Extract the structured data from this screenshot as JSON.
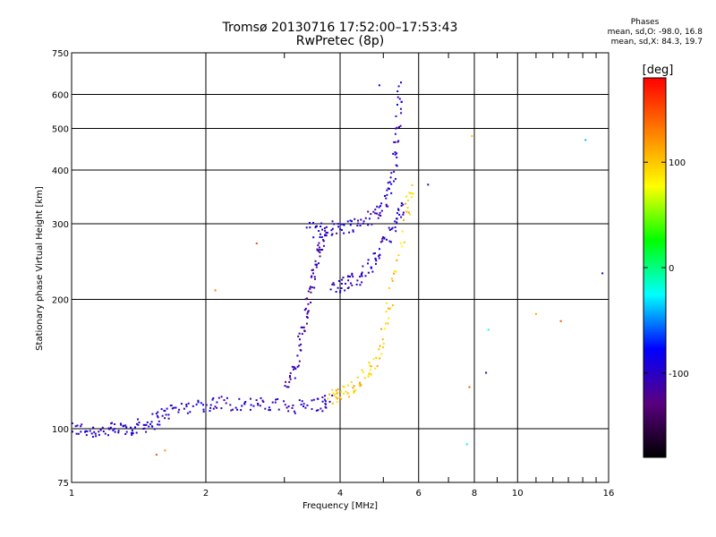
{
  "title": {
    "line1": "Tromsø 20130716 17:52:00–17:53:43",
    "line2": "RwPretec (8p)"
  },
  "phases": {
    "heading": "Phases",
    "line1": "mean, sd,O: -98.0, 16.8",
    "line2": "mean, sd,X:  84.3, 19.7"
  },
  "colorbar": {
    "label": "[deg]",
    "ticks": [
      "100",
      "0",
      "-100"
    ],
    "tick_values": [
      100,
      0,
      -100
    ],
    "range": [
      -180,
      180
    ],
    "stops": [
      "#000000",
      "#5a0080",
      "#0000ff",
      "#00ffff",
      "#00ff00",
      "#ffff00",
      "#ff8000",
      "#ff0000"
    ]
  },
  "chart_data": {
    "type": "scatter",
    "title": "Tromsø 20130716 17:52:00–17:53:43",
    "subtitle": "RwPretec (8p)",
    "xlabel": "Frequency [MHz]",
    "ylabel": "Stationary phase Virtual Height [km]",
    "xscale": "log",
    "yscale": "log",
    "xlim": [
      1,
      16
    ],
    "ylim": [
      75,
      750
    ],
    "grid": true,
    "xticks": [
      1,
      2,
      4,
      6,
      8,
      10,
      16
    ],
    "xtick_labels": [
      "1",
      "2",
      "4",
      "6",
      "8",
      "10",
      "16"
    ],
    "yticks": [
      75,
      100,
      200,
      300,
      400,
      500,
      600,
      750
    ],
    "ytick_labels": [
      "75",
      "100",
      "200",
      "300",
      "400",
      "500",
      "600",
      "750"
    ],
    "color_scale": "phase [deg]",
    "traces": [
      {
        "x": [
          1.0,
          1.1,
          1.2,
          1.3,
          1.4,
          1.5,
          1.6,
          1.75,
          2.0,
          2.2,
          2.5,
          2.8,
          3.2,
          3.6,
          3.8
        ],
        "y": [
          100,
          99,
          99,
          100,
          101,
          103,
          108,
          112,
          114,
          115,
          114,
          113,
          113,
          114,
          116
        ],
        "phase": -100
      },
      {
        "x": [
          3.4,
          3.7,
          4.0,
          4.4,
          4.8,
          5.1,
          5.3,
          5.4,
          5.45
        ],
        "y": [
          290,
          292,
          295,
          300,
          315,
          340,
          400,
          500,
          640
        ],
        "phase": -100
      },
      {
        "x": [
          3.0,
          3.2,
          3.3,
          3.4,
          3.5,
          3.6,
          3.7
        ],
        "y": [
          125,
          140,
          170,
          200,
          230,
          260,
          290
        ],
        "phase": -110
      },
      {
        "x": [
          3.85,
          4.1,
          4.4,
          4.7,
          5.0,
          5.3,
          5.6
        ],
        "y": [
          215,
          218,
          225,
          240,
          265,
          300,
          330
        ],
        "phase": -100
      },
      {
        "x": [
          3.8,
          4.0,
          4.3,
          4.6,
          4.9,
          5.2,
          5.6,
          5.8
        ],
        "y": [
          118,
          120,
          125,
          135,
          150,
          200,
          310,
          370
        ],
        "phase": 100
      }
    ],
    "points": [
      {
        "x": 7.9,
        "y": 480,
        "phase": 100
      },
      {
        "x": 8.5,
        "y": 135,
        "phase": -100
      },
      {
        "x": 8.6,
        "y": 170,
        "phase": -20
      },
      {
        "x": 11,
        "y": 185,
        "phase": 110
      },
      {
        "x": 12.5,
        "y": 178,
        "phase": 150
      },
      {
        "x": 14.2,
        "y": 470,
        "phase": -40
      },
      {
        "x": 15.5,
        "y": 230,
        "phase": -100
      },
      {
        "x": 7.7,
        "y": 92,
        "phase": -30
      },
      {
        "x": 7.8,
        "y": 125,
        "phase": 150
      },
      {
        "x": 1.55,
        "y": 87,
        "phase": 150
      },
      {
        "x": 1.62,
        "y": 89,
        "phase": 120
      },
      {
        "x": 2.1,
        "y": 210,
        "phase": 130
      },
      {
        "x": 2.6,
        "y": 270,
        "phase": 150
      },
      {
        "x": 6.3,
        "y": 370,
        "phase": -100
      },
      {
        "x": 4.9,
        "y": 630,
        "phase": -80
      }
    ]
  }
}
